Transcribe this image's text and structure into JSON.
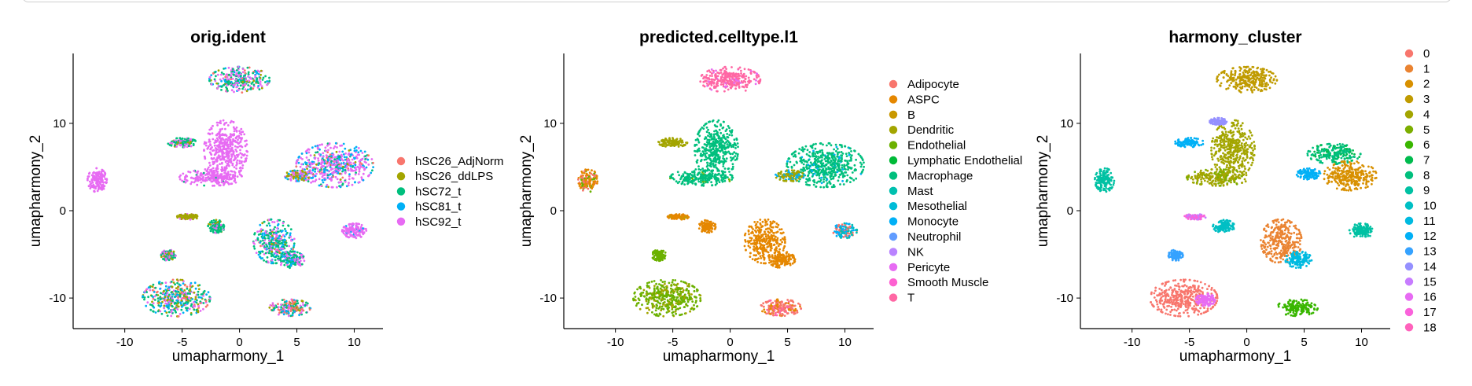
{
  "chart_data": [
    {
      "type": "scatter",
      "title": "orig.ident",
      "xlabel": "umapharmony_1",
      "ylabel": "umapharmony_2",
      "xlim": [
        -14.5,
        12.5
      ],
      "ylim": [
        -13.5,
        18
      ],
      "xticks": [
        -10,
        -5,
        0,
        5,
        10
      ],
      "yticks": [
        -10,
        0,
        10
      ],
      "legend_position": "right",
      "series": [
        {
          "name": "hSC26_AdjNorm",
          "color": "#F8766D"
        },
        {
          "name": "hSC26_ddLPS",
          "color": "#A3A500"
        },
        {
          "name": "hSC72_t",
          "color": "#00BF7D"
        },
        {
          "name": "hSC81_t",
          "color": "#00B0F6"
        },
        {
          "name": "hSC92_t",
          "color": "#E76BF3"
        }
      ],
      "clusters": [
        {
          "x": 0,
          "y": 15,
          "rx": 2.5,
          "ry": 1.4,
          "mix": [
            0.05,
            0.1,
            0.4,
            0.15,
            0.3
          ]
        },
        {
          "x": -1.2,
          "y": 7,
          "rx": 1.8,
          "ry": 3.2,
          "mix": [
            0,
            0,
            0,
            0,
            1
          ]
        },
        {
          "x": -2.5,
          "y": 3.8,
          "rx": 2.6,
          "ry": 0.9,
          "mix": [
            0,
            0,
            0.05,
            0,
            0.95
          ]
        },
        {
          "x": -5,
          "y": 7.8,
          "rx": 1.2,
          "ry": 0.5,
          "mix": [
            0,
            0.1,
            0.6,
            0,
            0.3
          ]
        },
        {
          "x": 8.3,
          "y": 5.2,
          "rx": 3.2,
          "ry": 2.4,
          "mix": [
            0.05,
            0.05,
            0.1,
            0.2,
            0.6
          ]
        },
        {
          "x": -12.4,
          "y": 3.5,
          "rx": 0.8,
          "ry": 1.3,
          "mix": [
            0,
            0,
            0,
            0,
            1
          ]
        },
        {
          "x": -5.5,
          "y": -10,
          "rx": 2.8,
          "ry": 2.0,
          "mix": [
            0.1,
            0.2,
            0.3,
            0.2,
            0.2
          ]
        },
        {
          "x": -6.2,
          "y": -5.1,
          "rx": 0.6,
          "ry": 0.6,
          "mix": [
            0,
            0.2,
            0.4,
            0,
            0.4
          ]
        },
        {
          "x": 3,
          "y": -3.5,
          "rx": 1.7,
          "ry": 2.4,
          "mix": [
            0.05,
            0.05,
            0.4,
            0.3,
            0.2
          ]
        },
        {
          "x": 4.5,
          "y": -5.6,
          "rx": 1.1,
          "ry": 0.9,
          "mix": [
            0,
            0,
            0.5,
            0.2,
            0.3
          ]
        },
        {
          "x": 4.4,
          "y": -11.1,
          "rx": 1.7,
          "ry": 0.9,
          "mix": [
            0.3,
            0.1,
            0.3,
            0.1,
            0.2
          ]
        },
        {
          "x": 10,
          "y": -2.3,
          "rx": 1.0,
          "ry": 0.8,
          "mix": [
            0,
            0,
            0,
            0.1,
            0.9
          ]
        },
        {
          "x": -2,
          "y": -1.8,
          "rx": 0.7,
          "ry": 0.7,
          "mix": [
            0,
            0.1,
            0.7,
            0,
            0.2
          ]
        },
        {
          "x": -4.5,
          "y": -0.7,
          "rx": 0.9,
          "ry": 0.3,
          "mix": [
            0,
            0.8,
            0,
            0,
            0.2
          ]
        },
        {
          "x": 5.2,
          "y": 4.0,
          "rx": 1.2,
          "ry": 0.6,
          "mix": [
            0,
            0.3,
            0,
            0.3,
            0.4
          ]
        }
      ]
    },
    {
      "type": "scatter",
      "title": "predicted.celltype.l1",
      "xlabel": "umapharmony_1",
      "ylabel": "umapharmony_2",
      "xlim": [
        -14.5,
        12.5
      ],
      "ylim": [
        -13.5,
        18
      ],
      "xticks": [
        -10,
        -5,
        0,
        5,
        10
      ],
      "yticks": [
        -10,
        0,
        10
      ],
      "legend_position": "right",
      "series": [
        {
          "name": "Adipocyte",
          "color": "#F8766D"
        },
        {
          "name": "ASPC",
          "color": "#E58700"
        },
        {
          "name": "B",
          "color": "#C99800"
        },
        {
          "name": "Dendritic",
          "color": "#A3A500"
        },
        {
          "name": "Endothelial",
          "color": "#6BB100"
        },
        {
          "name": "Lymphatic Endothelial",
          "color": "#00BA38"
        },
        {
          "name": "Macrophage",
          "color": "#00BF7D"
        },
        {
          "name": "Mast",
          "color": "#00C0AF"
        },
        {
          "name": "Mesothelial",
          "color": "#00BCD8"
        },
        {
          "name": "Monocyte",
          "color": "#00B0F6"
        },
        {
          "name": "Neutrophil",
          "color": "#619CFF"
        },
        {
          "name": "NK",
          "color": "#B983FF"
        },
        {
          "name": "Pericyte",
          "color": "#E76BF3"
        },
        {
          "name": "Smooth Muscle",
          "color": "#FD61D1"
        },
        {
          "name": "T",
          "color": "#FF67A4"
        }
      ],
      "clusters": [
        {
          "x": 0,
          "y": 15,
          "rx": 2.5,
          "ry": 1.4,
          "mix": {
            "14": 0.9,
            "12": 0.1
          }
        },
        {
          "x": -1.2,
          "y": 7,
          "rx": 1.8,
          "ry": 3.2,
          "mix": {
            "6": 1
          }
        },
        {
          "x": -2.5,
          "y": 3.8,
          "rx": 2.6,
          "ry": 0.9,
          "mix": {
            "6": 0.95,
            "4": 0.05
          }
        },
        {
          "x": -5,
          "y": 7.8,
          "rx": 1.2,
          "ry": 0.5,
          "mix": {
            "3": 1
          }
        },
        {
          "x": 8.3,
          "y": 5.2,
          "rx": 3.2,
          "ry": 2.4,
          "mix": {
            "6": 0.9,
            "9": 0.1
          }
        },
        {
          "x": 5.2,
          "y": 4.0,
          "rx": 1.2,
          "ry": 0.6,
          "mix": {
            "3": 0.7,
            "9": 0.3
          }
        },
        {
          "x": -12.4,
          "y": 3.5,
          "rx": 0.8,
          "ry": 1.3,
          "mix": {
            "1": 0.6,
            "0": 0.2,
            "4": 0.2
          }
        },
        {
          "x": -5.5,
          "y": -10,
          "rx": 2.8,
          "ry": 2.0,
          "mix": {
            "4": 0.75,
            "3": 0.25
          }
        },
        {
          "x": -6.2,
          "y": -5.1,
          "rx": 0.6,
          "ry": 0.6,
          "mix": {
            "4": 1
          }
        },
        {
          "x": 3,
          "y": -3.5,
          "rx": 1.7,
          "ry": 2.4,
          "mix": {
            "1": 1
          }
        },
        {
          "x": 4.5,
          "y": -5.6,
          "rx": 1.1,
          "ry": 0.9,
          "mix": {
            "1": 1
          }
        },
        {
          "x": 4.4,
          "y": -11.1,
          "rx": 1.7,
          "ry": 0.9,
          "mix": {
            "0": 0.5,
            "1": 0.3,
            "14": 0.2
          }
        },
        {
          "x": 10,
          "y": -2.3,
          "rx": 1.0,
          "ry": 0.8,
          "mix": {
            "9": 0.4,
            "7": 0.3,
            "0": 0.3
          }
        },
        {
          "x": -2,
          "y": -1.8,
          "rx": 0.7,
          "ry": 0.7,
          "mix": {
            "1": 1
          }
        },
        {
          "x": -4.5,
          "y": -0.7,
          "rx": 0.9,
          "ry": 0.3,
          "mix": {
            "1": 0.8,
            "2": 0.2
          }
        }
      ]
    },
    {
      "type": "scatter",
      "title": "harmony_cluster",
      "xlabel": "umapharmony_1",
      "ylabel": "umapharmony_2",
      "xlim": [
        -14.5,
        12.5
      ],
      "ylim": [
        -13.5,
        18
      ],
      "xticks": [
        -10,
        -5,
        0,
        5,
        10
      ],
      "yticks": [
        -10,
        0,
        10
      ],
      "legend_position": "right",
      "series": [
        {
          "name": "0",
          "color": "#F8766D"
        },
        {
          "name": "1",
          "color": "#EA8331"
        },
        {
          "name": "2",
          "color": "#D89000"
        },
        {
          "name": "3",
          "color": "#C09B00"
        },
        {
          "name": "4",
          "color": "#A3A500"
        },
        {
          "name": "5",
          "color": "#7CAE00"
        },
        {
          "name": "6",
          "color": "#39B600"
        },
        {
          "name": "7",
          "color": "#00BB4E"
        },
        {
          "name": "8",
          "color": "#00BF7D"
        },
        {
          "name": "9",
          "color": "#00C1A3"
        },
        {
          "name": "10",
          "color": "#00BFC4"
        },
        {
          "name": "11",
          "color": "#00BAE0"
        },
        {
          "name": "12",
          "color": "#00B0F6"
        },
        {
          "name": "13",
          "color": "#35A2FF"
        },
        {
          "name": "14",
          "color": "#9590FF"
        },
        {
          "name": "15",
          "color": "#C77CFF"
        },
        {
          "name": "16",
          "color": "#E76BF3"
        },
        {
          "name": "17",
          "color": "#FA62DB"
        },
        {
          "name": "18",
          "color": "#FF62BC"
        }
      ],
      "clusters": [
        {
          "x": 0,
          "y": 15,
          "rx": 2.5,
          "ry": 1.4,
          "mix": {
            "3": 1
          }
        },
        {
          "x": -1.2,
          "y": 7,
          "rx": 1.8,
          "ry": 3.2,
          "mix": {
            "4": 1
          }
        },
        {
          "x": -2.5,
          "y": 3.8,
          "rx": 2.6,
          "ry": 0.9,
          "mix": {
            "4": 0.8,
            "5": 0.2
          }
        },
        {
          "x": -2.5,
          "y": 10.2,
          "rx": 0.7,
          "ry": 0.4,
          "mix": {
            "14": 1
          }
        },
        {
          "x": -5,
          "y": 7.8,
          "rx": 1.2,
          "ry": 0.5,
          "mix": {
            "12": 1
          }
        },
        {
          "x": 7.6,
          "y": 6.5,
          "rx": 2.2,
          "ry": 1.1,
          "mix": {
            "8": 0.7,
            "7": 0.3
          }
        },
        {
          "x": 9,
          "y": 4.0,
          "rx": 2.2,
          "ry": 1.6,
          "mix": {
            "2": 1
          }
        },
        {
          "x": 5.4,
          "y": 4.2,
          "rx": 1.0,
          "ry": 0.6,
          "mix": {
            "12": 1
          }
        },
        {
          "x": -12.4,
          "y": 3.5,
          "rx": 0.8,
          "ry": 1.3,
          "mix": {
            "9": 1
          }
        },
        {
          "x": -5.5,
          "y": -10,
          "rx": 2.8,
          "ry": 2.0,
          "mix": {
            "0": 1
          }
        },
        {
          "x": -6.2,
          "y": -5.1,
          "rx": 0.6,
          "ry": 0.6,
          "mix": {
            "13": 1
          }
        },
        {
          "x": -3.6,
          "y": -10.2,
          "rx": 0.8,
          "ry": 0.7,
          "mix": {
            "16": 1
          }
        },
        {
          "x": 3,
          "y": -3.5,
          "rx": 1.7,
          "ry": 2.4,
          "mix": {
            "1": 1
          }
        },
        {
          "x": 4.5,
          "y": -5.6,
          "rx": 1.1,
          "ry": 0.9,
          "mix": {
            "11": 1
          }
        },
        {
          "x": 4.4,
          "y": -11.1,
          "rx": 1.7,
          "ry": 0.9,
          "mix": {
            "6": 1
          }
        },
        {
          "x": 10,
          "y": -2.3,
          "rx": 1.0,
          "ry": 0.8,
          "mix": {
            "9": 1
          }
        },
        {
          "x": -2,
          "y": -1.8,
          "rx": 0.9,
          "ry": 0.7,
          "mix": {
            "10": 1
          }
        },
        {
          "x": -4.5,
          "y": -0.7,
          "rx": 0.9,
          "ry": 0.3,
          "mix": {
            "17": 0.6,
            "15": 0.4
          }
        }
      ]
    }
  ]
}
